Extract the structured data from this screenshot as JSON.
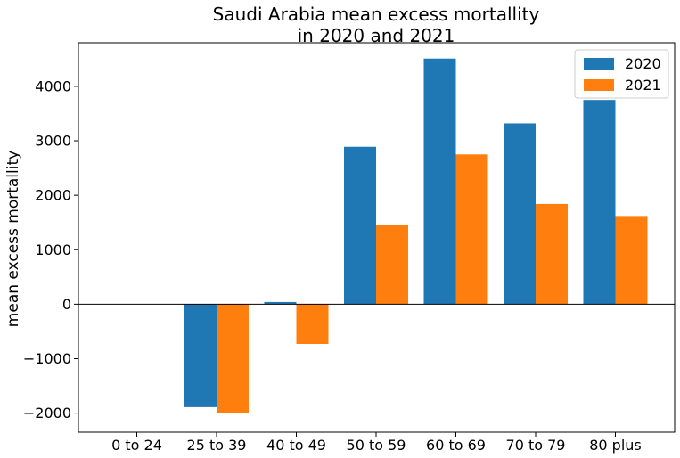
{
  "chart_data": {
    "type": "bar",
    "title_lines": [
      "Saudi Arabia mean excess mortallity",
      "in 2020 and 2021"
    ],
    "xlabel": "",
    "ylabel": "mean excess mortallity",
    "categories": [
      "0 to 24",
      "25 to 39",
      "40 to 49",
      "50 to 59",
      "60 to 69",
      "70 to 79",
      "80 plus"
    ],
    "series": [
      {
        "name": "2020",
        "color": "#1f77b4",
        "values": [
          0,
          -1890,
          40,
          2890,
          4510,
          3320,
          3750
        ]
      },
      {
        "name": "2021",
        "color": "#ff7f0e",
        "values": [
          0,
          -2000,
          -730,
          1460,
          2750,
          1840,
          1620
        ]
      }
    ],
    "ylim": [
      -2350,
      4800
    ],
    "yticks": [
      -2000,
      -1000,
      0,
      1000,
      2000,
      3000,
      4000
    ],
    "ytick_labels": [
      "−2000",
      "−1000",
      "0",
      "1000",
      "2000",
      "3000",
      "4000"
    ],
    "grid": false,
    "zero_line": true,
    "legend_position": "top-right"
  }
}
